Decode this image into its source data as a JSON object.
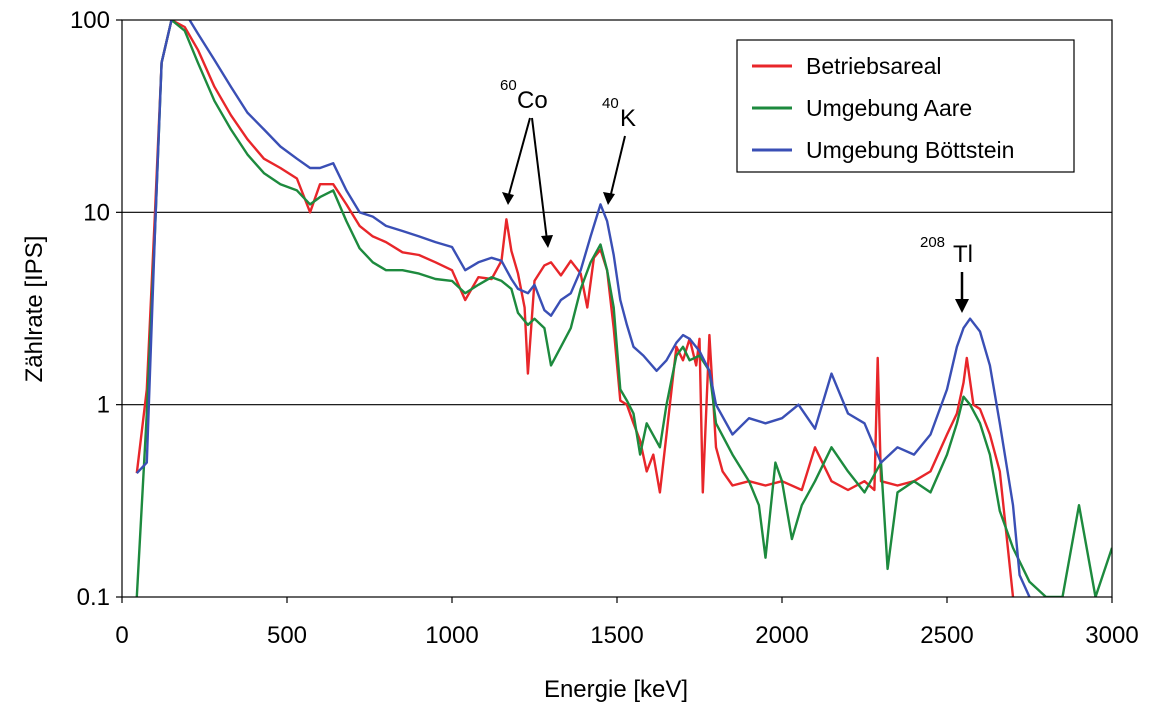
{
  "chart_data": {
    "type": "line",
    "title": "",
    "xlabel": "Energie [keV]",
    "ylabel": "Zählrate [IPS]",
    "xlim": [
      0,
      3000
    ],
    "ylim": [
      0.1,
      100
    ],
    "yscale": "log",
    "grid": "horizontal major gridlines",
    "legend_position": "top-right",
    "xticks": [
      "0",
      "500",
      "1000",
      "1500",
      "2000",
      "2500",
      "3000"
    ],
    "yticks": [
      "0.1",
      "1",
      "10",
      "100"
    ],
    "series": [
      {
        "name": "Betriebsareal",
        "color": "#e8262a",
        "points": [
          [
            45,
            0.44
          ],
          [
            75,
            1.2
          ],
          [
            100,
            10
          ],
          [
            120,
            60
          ],
          [
            150,
            100
          ],
          [
            190,
            92
          ],
          [
            230,
            70
          ],
          [
            280,
            45
          ],
          [
            330,
            32
          ],
          [
            380,
            24
          ],
          [
            430,
            19
          ],
          [
            480,
            17
          ],
          [
            530,
            15
          ],
          [
            570,
            10
          ],
          [
            600,
            14
          ],
          [
            640,
            14
          ],
          [
            680,
            11
          ],
          [
            720,
            8.5
          ],
          [
            760,
            7.5
          ],
          [
            800,
            7.0
          ],
          [
            850,
            6.2
          ],
          [
            900,
            6.0
          ],
          [
            950,
            5.5
          ],
          [
            1000,
            5.0
          ],
          [
            1040,
            3.5
          ],
          [
            1080,
            4.6
          ],
          [
            1120,
            4.5
          ],
          [
            1150,
            5.6
          ],
          [
            1165,
            9.2
          ],
          [
            1180,
            6.3
          ],
          [
            1200,
            4.8
          ],
          [
            1220,
            3.2
          ],
          [
            1230,
            1.45
          ],
          [
            1250,
            4.4
          ],
          [
            1280,
            5.3
          ],
          [
            1300,
            5.5
          ],
          [
            1330,
            4.7
          ],
          [
            1360,
            5.6
          ],
          [
            1390,
            4.8
          ],
          [
            1410,
            3.2
          ],
          [
            1430,
            5.8
          ],
          [
            1450,
            6.4
          ],
          [
            1470,
            5.0
          ],
          [
            1490,
            2.5
          ],
          [
            1510,
            1.05
          ],
          [
            1530,
            1.0
          ],
          [
            1550,
            0.8
          ],
          [
            1570,
            0.65
          ],
          [
            1590,
            0.45
          ],
          [
            1610,
            0.55
          ],
          [
            1630,
            0.35
          ],
          [
            1650,
            0.7
          ],
          [
            1680,
            2.0
          ],
          [
            1700,
            1.7
          ],
          [
            1720,
            2.2
          ],
          [
            1740,
            1.6
          ],
          [
            1750,
            2.2
          ],
          [
            1760,
            0.35
          ],
          [
            1780,
            2.3
          ],
          [
            1800,
            0.6
          ],
          [
            1820,
            0.45
          ],
          [
            1850,
            0.38
          ],
          [
            1900,
            0.4
          ],
          [
            1950,
            0.38
          ],
          [
            2000,
            0.4
          ],
          [
            2060,
            0.36
          ],
          [
            2100,
            0.6
          ],
          [
            2150,
            0.4
          ],
          [
            2200,
            0.36
          ],
          [
            2250,
            0.4
          ],
          [
            2280,
            0.36
          ],
          [
            2290,
            1.75
          ],
          [
            2300,
            0.4
          ],
          [
            2350,
            0.38
          ],
          [
            2400,
            0.4
          ],
          [
            2450,
            0.45
          ],
          [
            2500,
            0.7
          ],
          [
            2530,
            0.9
          ],
          [
            2550,
            1.3
          ],
          [
            2560,
            1.75
          ],
          [
            2580,
            1.0
          ],
          [
            2600,
            0.95
          ],
          [
            2630,
            0.7
          ],
          [
            2660,
            0.45
          ],
          [
            2700,
            0.1
          ]
        ]
      },
      {
        "name": "Umgebung Aare",
        "color": "#1d8a3e",
        "points": [
          [
            45,
            0.1
          ],
          [
            75,
            0.9
          ],
          [
            100,
            8
          ],
          [
            120,
            60
          ],
          [
            150,
            100
          ],
          [
            190,
            88
          ],
          [
            230,
            60
          ],
          [
            280,
            38
          ],
          [
            330,
            27
          ],
          [
            380,
            20
          ],
          [
            430,
            16
          ],
          [
            480,
            14
          ],
          [
            530,
            13
          ],
          [
            570,
            11
          ],
          [
            600,
            12
          ],
          [
            640,
            13
          ],
          [
            680,
            9
          ],
          [
            720,
            6.5
          ],
          [
            760,
            5.5
          ],
          [
            800,
            5.0
          ],
          [
            850,
            5.0
          ],
          [
            900,
            4.8
          ],
          [
            950,
            4.5
          ],
          [
            1000,
            4.4
          ],
          [
            1040,
            3.8
          ],
          [
            1080,
            4.2
          ],
          [
            1120,
            4.6
          ],
          [
            1150,
            4.4
          ],
          [
            1180,
            4.0
          ],
          [
            1200,
            3.0
          ],
          [
            1230,
            2.6
          ],
          [
            1250,
            2.8
          ],
          [
            1280,
            2.5
          ],
          [
            1300,
            1.6
          ],
          [
            1330,
            2.0
          ],
          [
            1360,
            2.5
          ],
          [
            1390,
            4.0
          ],
          [
            1420,
            5.5
          ],
          [
            1450,
            6.8
          ],
          [
            1470,
            5.0
          ],
          [
            1490,
            3.2
          ],
          [
            1510,
            1.2
          ],
          [
            1530,
            1.05
          ],
          [
            1550,
            0.9
          ],
          [
            1570,
            0.55
          ],
          [
            1590,
            0.8
          ],
          [
            1630,
            0.6
          ],
          [
            1650,
            1.0
          ],
          [
            1680,
            1.8
          ],
          [
            1700,
            2.0
          ],
          [
            1720,
            1.7
          ],
          [
            1750,
            1.8
          ],
          [
            1780,
            1.5
          ],
          [
            1800,
            0.8
          ],
          [
            1850,
            0.55
          ],
          [
            1900,
            0.4
          ],
          [
            1930,
            0.3
          ],
          [
            1950,
            0.16
          ],
          [
            1980,
            0.5
          ],
          [
            2000,
            0.4
          ],
          [
            2030,
            0.2
          ],
          [
            2060,
            0.3
          ],
          [
            2100,
            0.4
          ],
          [
            2150,
            0.6
          ],
          [
            2200,
            0.45
          ],
          [
            2250,
            0.35
          ],
          [
            2300,
            0.5
          ],
          [
            2320,
            0.14
          ],
          [
            2350,
            0.35
          ],
          [
            2400,
            0.4
          ],
          [
            2450,
            0.35
          ],
          [
            2500,
            0.55
          ],
          [
            2530,
            0.8
          ],
          [
            2550,
            1.1
          ],
          [
            2570,
            1.0
          ],
          [
            2600,
            0.8
          ],
          [
            2630,
            0.55
          ],
          [
            2660,
            0.28
          ],
          [
            2700,
            0.18
          ],
          [
            2750,
            0.12
          ],
          [
            2800,
            0.1
          ],
          [
            2850,
            0.1
          ],
          [
            2900,
            0.3
          ],
          [
            2950,
            0.1
          ],
          [
            3000,
            0.18
          ]
        ]
      },
      {
        "name": "Umgebung Böttstein",
        "color": "#3a4fb5",
        "points": [
          [
            45,
            0.44
          ],
          [
            75,
            0.5
          ],
          [
            100,
            8
          ],
          [
            120,
            60
          ],
          [
            150,
            100
          ],
          [
            190,
            110
          ],
          [
            230,
            85
          ],
          [
            280,
            62
          ],
          [
            330,
            45
          ],
          [
            380,
            33
          ],
          [
            430,
            27
          ],
          [
            480,
            22
          ],
          [
            530,
            19
          ],
          [
            570,
            17
          ],
          [
            600,
            17
          ],
          [
            640,
            18
          ],
          [
            680,
            13
          ],
          [
            720,
            10
          ],
          [
            760,
            9.5
          ],
          [
            800,
            8.5
          ],
          [
            850,
            8.0
          ],
          [
            900,
            7.5
          ],
          [
            950,
            7.0
          ],
          [
            1000,
            6.6
          ],
          [
            1040,
            5.0
          ],
          [
            1080,
            5.5
          ],
          [
            1120,
            5.8
          ],
          [
            1150,
            5.6
          ],
          [
            1180,
            4.5
          ],
          [
            1200,
            4.0
          ],
          [
            1230,
            3.8
          ],
          [
            1250,
            4.2
          ],
          [
            1280,
            3.1
          ],
          [
            1300,
            2.9
          ],
          [
            1330,
            3.5
          ],
          [
            1360,
            3.8
          ],
          [
            1390,
            5.0
          ],
          [
            1420,
            7.5
          ],
          [
            1450,
            11
          ],
          [
            1470,
            9.0
          ],
          [
            1490,
            6.0
          ],
          [
            1510,
            3.5
          ],
          [
            1530,
            2.6
          ],
          [
            1550,
            2.0
          ],
          [
            1580,
            1.8
          ],
          [
            1620,
            1.5
          ],
          [
            1650,
            1.7
          ],
          [
            1680,
            2.1
          ],
          [
            1700,
            2.3
          ],
          [
            1720,
            2.2
          ],
          [
            1750,
            1.9
          ],
          [
            1780,
            1.5
          ],
          [
            1800,
            1.0
          ],
          [
            1850,
            0.7
          ],
          [
            1900,
            0.85
          ],
          [
            1950,
            0.8
          ],
          [
            2000,
            0.85
          ],
          [
            2050,
            1.0
          ],
          [
            2100,
            0.75
          ],
          [
            2150,
            1.45
          ],
          [
            2200,
            0.9
          ],
          [
            2250,
            0.8
          ],
          [
            2300,
            0.5
          ],
          [
            2350,
            0.6
          ],
          [
            2400,
            0.55
          ],
          [
            2450,
            0.7
          ],
          [
            2500,
            1.2
          ],
          [
            2530,
            2.0
          ],
          [
            2550,
            2.5
          ],
          [
            2570,
            2.8
          ],
          [
            2600,
            2.4
          ],
          [
            2630,
            1.6
          ],
          [
            2660,
            0.8
          ],
          [
            2700,
            0.3
          ],
          [
            2720,
            0.13
          ],
          [
            2750,
            0.1
          ]
        ]
      }
    ],
    "annotations": [
      {
        "sup": "60",
        "label": "Co"
      },
      {
        "sup": "40",
        "label": "K"
      },
      {
        "sup": "208",
        "label": "Tl"
      }
    ]
  }
}
